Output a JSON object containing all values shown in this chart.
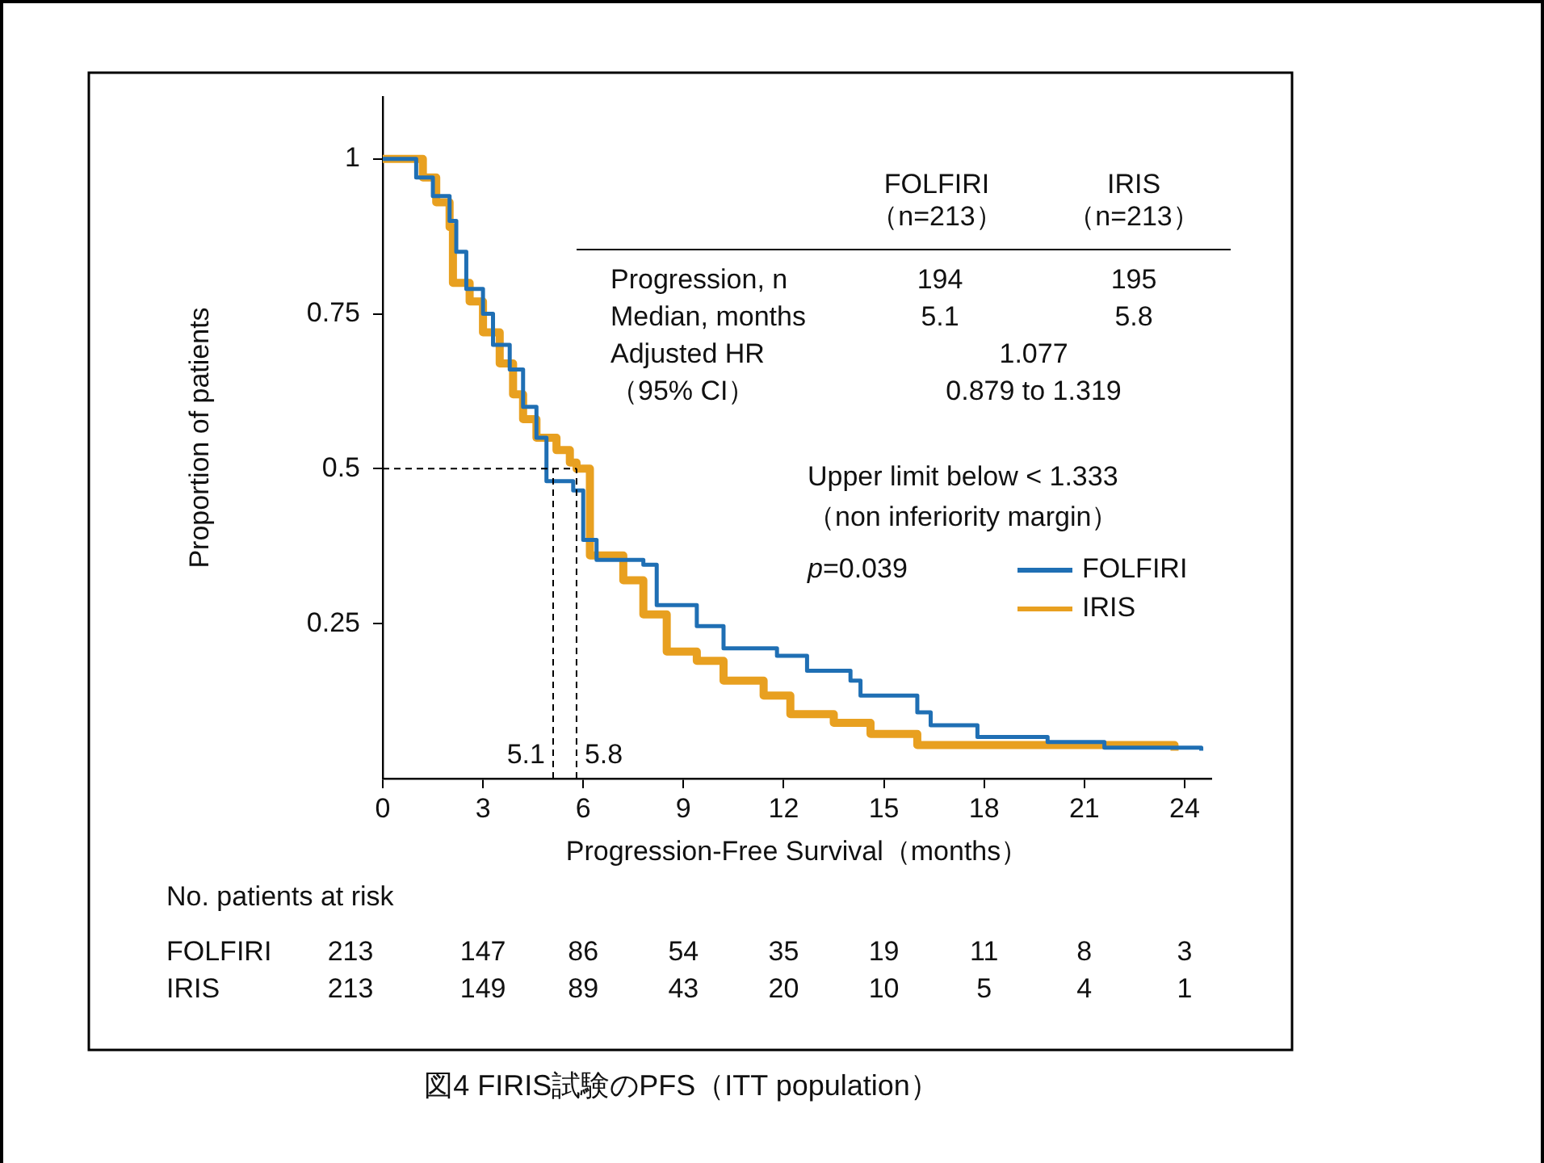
{
  "chart_data": {
    "type": "step",
    "title": "図4 FIRIS試験のPFS（ITT population）",
    "xlabel": "Progression-Free Survival（months）",
    "ylabel": "Proportion of patients",
    "xlim": [
      0,
      24.8
    ],
    "xticks": [
      0,
      3,
      6,
      9,
      12,
      15,
      18,
      21,
      24
    ],
    "ylim": [
      0,
      1.1
    ],
    "yticks": [
      0.25,
      0.5,
      0.75,
      1
    ],
    "grid": false,
    "legend": "right",
    "marker": "none",
    "series": [
      {
        "name": "FOLFIRI",
        "color": "#1f6fb4",
        "x": [
          0,
          0.6,
          1,
          1.5,
          2,
          2.2,
          2.5,
          3,
          3.3,
          3.8,
          4.2,
          4.6,
          4.9,
          5.7,
          6.0,
          6.4,
          7.8,
          8.2,
          9.4,
          10.2,
          11.8,
          12.7,
          14.0,
          14.3,
          16.0,
          16.4,
          17.8,
          19.9,
          21.6,
          24.5
        ],
        "values": [
          1,
          1,
          0.97,
          0.94,
          0.9,
          0.85,
          0.79,
          0.75,
          0.7,
          0.66,
          0.6,
          0.55,
          0.48,
          0.465,
          0.385,
          0.353,
          0.345,
          0.28,
          0.246,
          0.21,
          0.198,
          0.174,
          0.158,
          0.134,
          0.107,
          0.086,
          0.067,
          0.059,
          0.05,
          0.045
        ]
      },
      {
        "name": "IRIS",
        "color": "#e8a020",
        "x": [
          0,
          0.8,
          1.2,
          1.6,
          2.0,
          2.1,
          2.6,
          3.0,
          3.5,
          3.9,
          4.2,
          4.6,
          5.2,
          5.6,
          5.8,
          6.2,
          7.2,
          7.8,
          8.5,
          9.4,
          10.2,
          11.4,
          12.2,
          13.5,
          14.6,
          16.0,
          23.7,
          23.7
        ],
        "values": [
          1,
          1,
          0.97,
          0.93,
          0.89,
          0.8,
          0.77,
          0.72,
          0.67,
          0.62,
          0.58,
          0.55,
          0.53,
          0.51,
          0.5,
          0.36,
          0.32,
          0.265,
          0.205,
          0.19,
          0.158,
          0.134,
          0.104,
          0.09,
          0.072,
          0.054,
          0.054,
          0.045
        ]
      }
    ],
    "ref_lines": [
      {
        "axis": "y",
        "value": 0.5,
        "line_style": "dashed"
      },
      {
        "axis": "x",
        "value": 5.1,
        "label": "5.1",
        "line_style": "dashed"
      },
      {
        "axis": "x",
        "value": 5.8,
        "label": "5.8",
        "line_style": "dashed"
      }
    ],
    "annotations": [
      "FOLFIRI",
      "（n=213）",
      "IRIS",
      "（n=213）",
      "Progression, n",
      "194",
      "195",
      "Median, months",
      "5.1",
      "5.8",
      "Adjusted HR",
      "1.077",
      "（95% CI）",
      "0.879 to 1.319",
      "Upper limit below < 1.333",
      "（non inferiority margin）",
      "p=0.039",
      "No. patients at risk",
      "FOLFIRI 213 147 86 54 35 19 11 8 3",
      "IRIS 213 149 89 43 20 10 5 4 1"
    ]
  }
}
